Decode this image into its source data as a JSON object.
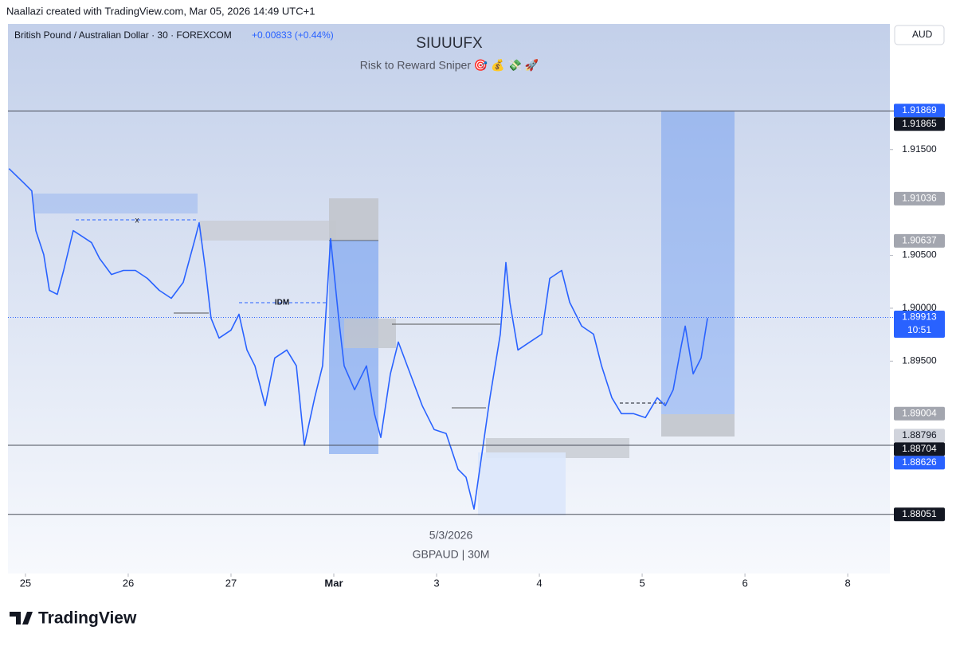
{
  "header": {
    "credit": "Naallazi created with TradingView.com, Mar 05, 2026 14:49 UTC+1",
    "symbol": "British Pound / Australian Dollar · 30 · FOREXCOM",
    "change": "+0.00833 (+0.44%)",
    "currency": "AUD"
  },
  "chart_data": {
    "type": "line",
    "title": "SIUUUFX",
    "subtitle": "Risk to Reward Sniper 🎯 💰 💸 🚀",
    "color": "#2962ff",
    "x": [
      -0.16,
      -0.016,
      0.062,
      0.101,
      0.178,
      0.233,
      0.31,
      0.372,
      0.465,
      0.527,
      0.643,
      0.721,
      0.837,
      0.953,
      1.07,
      1.186,
      1.302,
      1.419,
      1.535,
      1.651,
      1.69,
      1.752,
      1.806,
      1.884,
      2.0,
      2.078,
      2.155,
      2.233,
      2.333,
      2.426,
      2.543,
      2.636,
      2.713,
      2.814,
      2.891,
      2.969,
      3.047,
      3.101,
      3.202,
      3.318,
      3.395,
      3.457,
      3.55,
      3.628,
      3.744,
      3.86,
      3.977,
      4.093,
      4.209,
      4.287,
      4.364,
      4.442,
      4.519,
      4.62,
      4.674,
      4.713,
      4.791,
      4.907,
      5.023,
      5.101,
      5.217,
      5.295,
      5.411,
      5.527,
      5.605,
      5.705,
      5.798,
      5.915,
      6.031,
      6.147,
      6.225,
      6.302,
      6.38,
      6.419,
      6.496,
      6.574,
      6.636
    ],
    "values": [
      1.9132,
      1.91184,
      1.91109,
      1.90733,
      1.90507,
      1.90169,
      1.90131,
      1.90357,
      1.90733,
      1.90695,
      1.9062,
      1.9047,
      1.90319,
      1.90357,
      1.90357,
      1.90282,
      1.90169,
      1.90094,
      1.90244,
      1.90658,
      1.90808,
      1.90357,
      1.89906,
      1.89718,
      1.89793,
      1.89943,
      1.89605,
      1.89455,
      1.89079,
      1.8953,
      1.89605,
      1.89455,
      1.88703,
      1.89154,
      1.89455,
      1.90658,
      1.89906,
      1.89455,
      1.89229,
      1.89455,
      1.89003,
      1.88778,
      1.89379,
      1.8968,
      1.89379,
      1.89079,
      1.88853,
      1.88815,
      1.88477,
      1.88402,
      1.88101,
      1.88627,
      1.89154,
      1.89755,
      1.90432,
      1.90056,
      1.89605,
      1.8968,
      1.89755,
      1.90282,
      1.90357,
      1.90056,
      1.89831,
      1.89755,
      1.89455,
      1.89154,
      1.89003,
      1.89003,
      1.88966,
      1.89154,
      1.89079,
      1.89229,
      1.89643,
      1.89831,
      1.89379,
      1.8953,
      1.89906
    ],
    "xlim": [
      -0.17,
      8.41
    ],
    "xticks": [
      {
        "value": 0,
        "label": "25"
      },
      {
        "value": 1,
        "label": "26"
      },
      {
        "value": 2,
        "label": "27"
      },
      {
        "value": 3,
        "label": "Mar"
      },
      {
        "value": 4,
        "label": "3"
      },
      {
        "value": 5,
        "label": "4"
      },
      {
        "value": 6,
        "label": "5"
      },
      {
        "value": 7,
        "label": "6"
      },
      {
        "value": 8,
        "label": "8"
      }
    ],
    "ylim": [
      1.87492,
      1.92688
    ],
    "yticks": [
      {
        "value": 1.915,
        "label": "1.91500"
      },
      {
        "value": 1.905,
        "label": "1.90500"
      },
      {
        "value": 1.9,
        "label": "1.90000"
      },
      {
        "value": 1.895,
        "label": "1.89500"
      }
    ],
    "price_markers": [
      {
        "value": 1.91869,
        "label": "1.91869",
        "color": "#2962ff",
        "text_color": "#ffffff"
      },
      {
        "value": 1.91865,
        "label": "1.91865",
        "color": "#131722",
        "text_color": "#ffffff"
      },
      {
        "value": 1.91036,
        "label": "1.91036",
        "color": "#a3a6af",
        "text_color": "#ffffff"
      },
      {
        "value": 1.90637,
        "label": "1.90637",
        "color": "#a3a6af",
        "text_color": "#ffffff"
      },
      {
        "value": 1.89913,
        "label": "1.89913",
        "sublabel": "10:51",
        "color": "#2962ff",
        "text_color": "#ffffff"
      },
      {
        "value": 1.89004,
        "label": "1.89004",
        "color": "#a3a6af",
        "text_color": "#ffffff"
      },
      {
        "value": 1.88796,
        "label": "1.88796",
        "color": "#d1d4dc",
        "text_color": "#131722"
      },
      {
        "value": 1.88704,
        "label": "1.88704",
        "color": "#131722",
        "text_color": "#ffffff"
      },
      {
        "value": 1.88626,
        "label": "1.88626",
        "color": "#2962ff",
        "text_color": "#ffffff"
      },
      {
        "value": 1.88051,
        "label": "1.88051",
        "color": "#131722",
        "text_color": "#ffffff"
      }
    ],
    "annotations": {
      "x_mark": "x",
      "idm": "IDM"
    }
  },
  "footer": {
    "date": "5/3/2026",
    "pair": "GBPAUD | 30M",
    "brand": "TradingView"
  }
}
